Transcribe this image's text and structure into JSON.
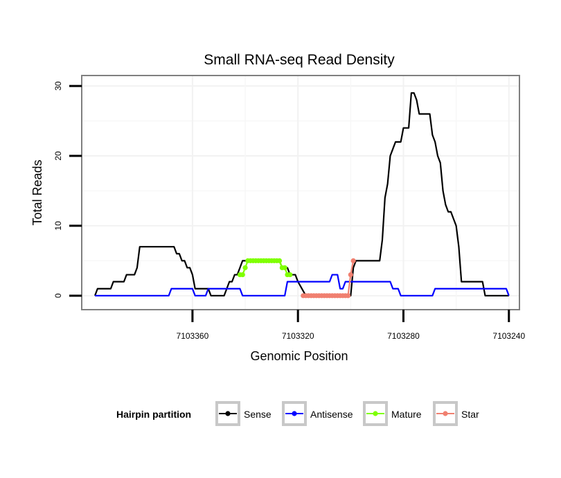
{
  "chart_data": {
    "type": "line",
    "title": "Small RNA-seq Read Density",
    "xlabel": "Genomic Position",
    "ylabel": "Total Reads",
    "xlim": [
      7103402,
      7103236
    ],
    "x_reversed": true,
    "ylim": [
      -2,
      31.5
    ],
    "xticks": [
      7103360,
      7103320,
      7103280,
      7103240
    ],
    "yticks": [
      0,
      10,
      20,
      30
    ],
    "grid": true,
    "legend": {
      "title": "Hairpin partition",
      "placement": "bottom",
      "entries": [
        "Sense",
        "Antisense",
        "Mature",
        "Star"
      ]
    },
    "series": [
      {
        "name": "Sense",
        "color": "#000000",
        "marker": false,
        "points": [
          [
            7103397,
            0
          ],
          [
            7103396,
            1
          ],
          [
            7103391,
            1
          ],
          [
            7103390,
            2
          ],
          [
            7103386,
            2
          ],
          [
            7103385,
            3
          ],
          [
            7103382,
            3
          ],
          [
            7103381,
            4
          ],
          [
            7103380,
            7
          ],
          [
            7103367,
            7
          ],
          [
            7103366,
            6
          ],
          [
            7103365,
            6
          ],
          [
            7103364,
            5
          ],
          [
            7103363,
            5
          ],
          [
            7103362,
            4
          ],
          [
            7103361,
            4
          ],
          [
            7103360,
            3
          ],
          [
            7103359,
            1
          ],
          [
            7103354,
            1
          ],
          [
            7103353,
            0
          ],
          [
            7103348,
            0
          ],
          [
            7103347,
            1
          ],
          [
            7103346,
            2
          ],
          [
            7103345,
            2
          ],
          [
            7103344,
            3
          ],
          [
            7103343,
            3
          ],
          [
            7103342,
            4
          ],
          [
            7103341,
            5
          ],
          [
            7103327,
            5
          ],
          [
            7103326,
            4
          ],
          [
            7103324,
            4
          ],
          [
            7103323,
            3
          ],
          [
            7103321,
            3
          ],
          [
            7103320,
            2
          ],
          [
            7103317,
            0
          ],
          [
            7103300,
            0
          ],
          [
            7103299,
            4
          ],
          [
            7103298,
            5
          ],
          [
            7103289,
            5
          ],
          [
            7103288,
            8
          ],
          [
            7103287,
            14
          ],
          [
            7103286,
            16
          ],
          [
            7103285,
            20
          ],
          [
            7103284,
            21
          ],
          [
            7103283,
            22
          ],
          [
            7103281,
            22
          ],
          [
            7103280,
            24
          ],
          [
            7103278,
            24
          ],
          [
            7103277,
            29
          ],
          [
            7103276,
            29
          ],
          [
            7103275,
            28
          ],
          [
            7103274,
            26
          ],
          [
            7103270,
            26
          ],
          [
            7103269,
            23
          ],
          [
            7103268,
            22
          ],
          [
            7103267,
            20
          ],
          [
            7103266,
            19
          ],
          [
            7103265,
            15
          ],
          [
            7103264,
            13
          ],
          [
            7103263,
            12
          ],
          [
            7103262,
            12
          ],
          [
            7103261,
            11
          ],
          [
            7103260,
            10
          ],
          [
            7103259,
            7
          ],
          [
            7103258,
            2
          ],
          [
            7103250,
            2
          ],
          [
            7103249,
            0
          ],
          [
            7103240,
            0
          ]
        ]
      },
      {
        "name": "Antisense",
        "color": "#0000ff",
        "marker": false,
        "points": [
          [
            7103397,
            0
          ],
          [
            7103369,
            0
          ],
          [
            7103368,
            1
          ],
          [
            7103360,
            1
          ],
          [
            7103359,
            0
          ],
          [
            7103355,
            0
          ],
          [
            7103354,
            1
          ],
          [
            7103342,
            1
          ],
          [
            7103341,
            0
          ],
          [
            7103325,
            0
          ],
          [
            7103324,
            2
          ],
          [
            7103308,
            2
          ],
          [
            7103307,
            3
          ],
          [
            7103305,
            3
          ],
          [
            7103304,
            1
          ],
          [
            7103303,
            1
          ],
          [
            7103302,
            2
          ],
          [
            7103285,
            2
          ],
          [
            7103284,
            1
          ],
          [
            7103282,
            1
          ],
          [
            7103281,
            0
          ],
          [
            7103269,
            0
          ],
          [
            7103268,
            1
          ],
          [
            7103253,
            1
          ],
          [
            7103252,
            1
          ],
          [
            7103241,
            1
          ],
          [
            7103240,
            0
          ]
        ]
      },
      {
        "name": "Mature",
        "color": "#7fff00",
        "marker": true,
        "points": [
          [
            7103342,
            3
          ],
          [
            7103341,
            3
          ],
          [
            7103340,
            4
          ],
          [
            7103339,
            5
          ],
          [
            7103338,
            5
          ],
          [
            7103337,
            5
          ],
          [
            7103336,
            5
          ],
          [
            7103335,
            5
          ],
          [
            7103334,
            5
          ],
          [
            7103333,
            5
          ],
          [
            7103332,
            5
          ],
          [
            7103331,
            5
          ],
          [
            7103330,
            5
          ],
          [
            7103329,
            5
          ],
          [
            7103328,
            5
          ],
          [
            7103327,
            5
          ],
          [
            7103326,
            4
          ],
          [
            7103325,
            4
          ],
          [
            7103324,
            3
          ],
          [
            7103323,
            3
          ]
        ]
      },
      {
        "name": "Star",
        "color": "#f08070",
        "marker": true,
        "points": [
          [
            7103318,
            0
          ],
          [
            7103317,
            0
          ],
          [
            7103316,
            0
          ],
          [
            7103315,
            0
          ],
          [
            7103314,
            0
          ],
          [
            7103313,
            0
          ],
          [
            7103312,
            0
          ],
          [
            7103311,
            0
          ],
          [
            7103310,
            0
          ],
          [
            7103309,
            0
          ],
          [
            7103308,
            0
          ],
          [
            7103307,
            0
          ],
          [
            7103306,
            0
          ],
          [
            7103305,
            0
          ],
          [
            7103304,
            0
          ],
          [
            7103303,
            0
          ],
          [
            7103302,
            0
          ],
          [
            7103301,
            0
          ],
          [
            7103300,
            3
          ],
          [
            7103299,
            5
          ]
        ]
      }
    ]
  }
}
